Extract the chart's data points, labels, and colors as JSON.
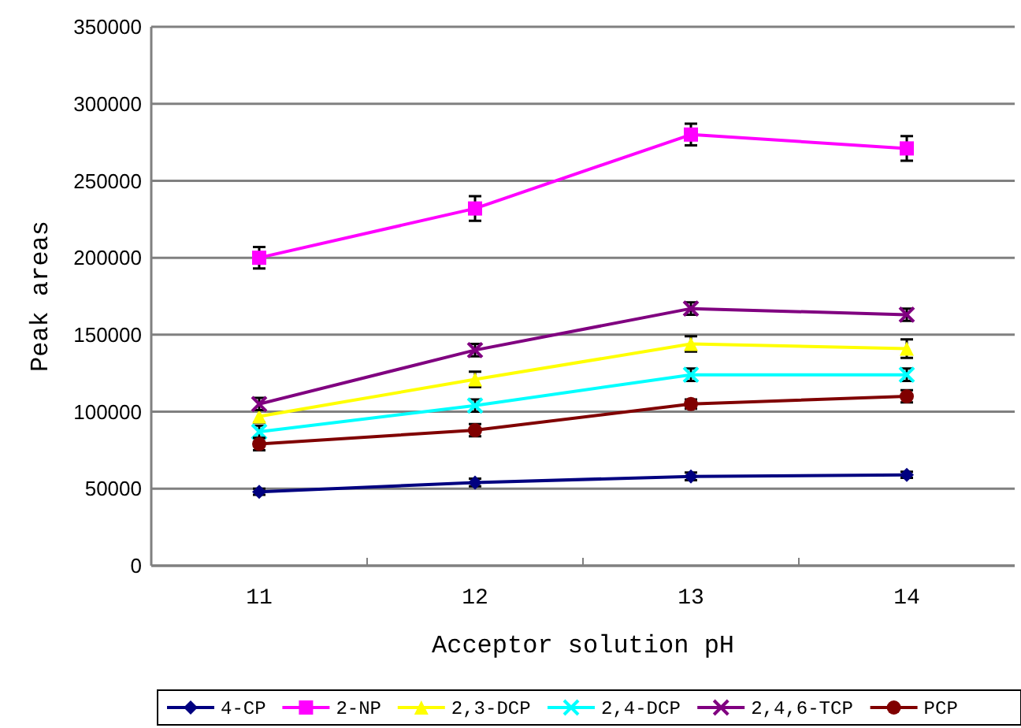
{
  "chart_data": {
    "type": "line",
    "xlabel": "Acceptor solution pH",
    "ylabel": "Peak areas",
    "categories": [
      "11",
      "12",
      "13",
      "14"
    ],
    "ylim": [
      0,
      350000
    ],
    "yticks": [
      0,
      50000,
      100000,
      150000,
      200000,
      250000,
      300000,
      350000
    ],
    "grid": "y",
    "legend": "bottom",
    "series": [
      {
        "name": "4-CP",
        "color": "#000080",
        "marker": "diamond",
        "values": [
          48000,
          54000,
          58000,
          59000
        ],
        "errors": [
          2000,
          2500,
          2500,
          2000
        ]
      },
      {
        "name": "2-NP",
        "color": "#ff00ff",
        "marker": "square",
        "values": [
          200000,
          232000,
          280000,
          271000
        ],
        "errors": [
          7000,
          8000,
          7000,
          8000
        ]
      },
      {
        "name": "2,3-DCP",
        "color": "#ffff00",
        "marker": "triangle",
        "values": [
          97000,
          121000,
          144000,
          141000
        ],
        "errors": [
          4000,
          5000,
          5000,
          6000
        ]
      },
      {
        "name": "2,4-DCP",
        "color": "#00ffff",
        "marker": "cross",
        "values": [
          87000,
          104000,
          124000,
          124000
        ],
        "errors": [
          4000,
          4000,
          4000,
          4000
        ]
      },
      {
        "name": "2,4,6-TCP",
        "color": "#800080",
        "marker": "cross",
        "values": [
          105000,
          140000,
          167000,
          163000
        ],
        "errors": [
          4000,
          4000,
          4000,
          4000
        ]
      },
      {
        "name": "PCP",
        "color": "#800000",
        "marker": "circle",
        "values": [
          79000,
          88000,
          105000,
          110000
        ],
        "errors": [
          4000,
          4000,
          3000,
          4000
        ]
      }
    ]
  }
}
